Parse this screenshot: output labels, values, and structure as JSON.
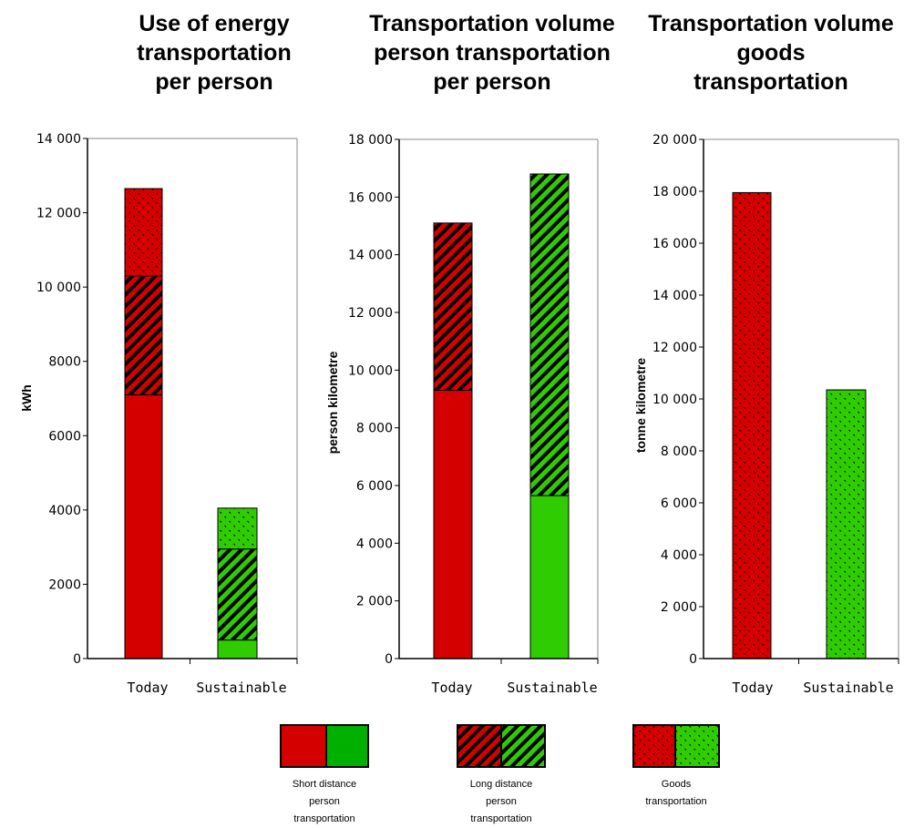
{
  "chart_data": [
    {
      "type": "bar",
      "stacked": true,
      "title": [
        "Use of energy",
        "transportation",
        "per person"
      ],
      "ylabel": "kWh",
      "categories": [
        "Today",
        "Sustainable"
      ],
      "ylim": [
        0,
        14000
      ],
      "yticks": [
        0,
        2000,
        4000,
        6000,
        8000,
        10000,
        12000,
        14000
      ],
      "ytick_labels": [
        "0",
        "2000",
        "4000",
        "6000",
        "8000",
        "10 000",
        "12 000",
        "14 000"
      ],
      "series": [
        {
          "key": "short",
          "values": [
            7100,
            500
          ]
        },
        {
          "key": "long",
          "values": [
            3200,
            2450
          ]
        },
        {
          "key": "goods",
          "values": [
            2350,
            1100
          ]
        }
      ],
      "grid": false
    },
    {
      "type": "bar",
      "stacked": true,
      "title": [
        "Transportation volume",
        "person transportation",
        "per person"
      ],
      "ylabel": "person kilometre",
      "categories": [
        "Today",
        "Sustainable"
      ],
      "ylim": [
        0,
        18000
      ],
      "yticks": [
        0,
        2000,
        4000,
        6000,
        8000,
        10000,
        12000,
        14000,
        16000,
        18000
      ],
      "ytick_labels": [
        "0",
        "2 000",
        "4 000",
        "6 000",
        "8 000",
        "10 000",
        "12 000",
        "14 000",
        "16 000",
        "18 000"
      ],
      "series": [
        {
          "key": "short",
          "values": [
            9300,
            5650
          ]
        },
        {
          "key": "long",
          "values": [
            5800,
            11150
          ]
        }
      ],
      "grid": false
    },
    {
      "type": "bar",
      "stacked": true,
      "title": [
        "Transportation volume",
        "goods",
        "transportation"
      ],
      "ylabel": "tonne kilometre",
      "categories": [
        "Today",
        "Sustainable"
      ],
      "ylim": [
        0,
        20000
      ],
      "yticks": [
        0,
        2000,
        4000,
        6000,
        8000,
        10000,
        12000,
        14000,
        16000,
        18000,
        20000
      ],
      "ytick_labels": [
        "0",
        "2 000",
        "4 000",
        "6 000",
        "8 000",
        "10 000",
        "12 000",
        "14 000",
        "16 000",
        "18 000",
        "20 000"
      ],
      "series": [
        {
          "key": "goods",
          "values": [
            17950,
            10350
          ]
        }
      ],
      "grid": false
    }
  ],
  "legend": {
    "placement": "bottom",
    "entries": [
      {
        "key": "short",
        "lines": [
          "Short distance",
          "person",
          "transportation"
        ]
      },
      {
        "key": "long",
        "lines": [
          "Long distance",
          "person",
          "transportation"
        ]
      },
      {
        "key": "goods",
        "lines": [
          "Goods",
          "transportation"
        ]
      }
    ]
  },
  "colors": {
    "today": "#d40000",
    "sustainable": "#2ecc00",
    "sustainable_legend": "#00b000",
    "pattern_ink": "#000000"
  }
}
